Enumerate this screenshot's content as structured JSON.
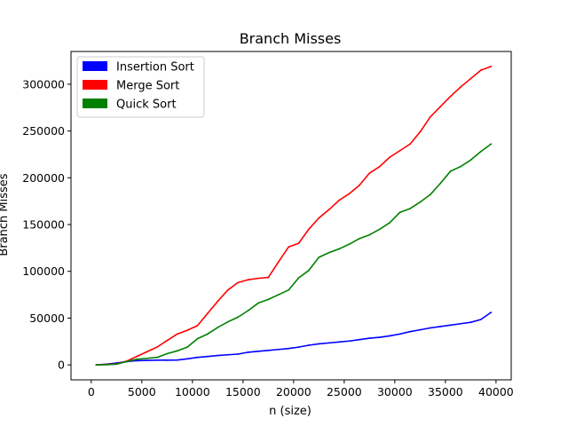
{
  "chart_data": {
    "type": "line",
    "title": "Branch Misses",
    "xlabel": "n (size)",
    "ylabel": "Branch Misses",
    "xlim": [
      -2000,
      41500
    ],
    "ylim": [
      -16000,
      335000
    ],
    "x_ticks": [
      0,
      5000,
      10000,
      15000,
      20000,
      25000,
      30000,
      35000,
      40000
    ],
    "y_ticks": [
      0,
      50000,
      100000,
      150000,
      200000,
      250000,
      300000
    ],
    "grid": false,
    "legend_position": "top-left",
    "x": [
      500,
      1500,
      2500,
      3500,
      4500,
      5500,
      6500,
      7500,
      8500,
      9500,
      10500,
      11500,
      12500,
      13500,
      14500,
      15500,
      16500,
      17500,
      18500,
      19500,
      20500,
      21500,
      22500,
      23500,
      24500,
      25500,
      26500,
      27500,
      28500,
      29500,
      30500,
      31500,
      32500,
      33500,
      34500,
      35500,
      36500,
      37500,
      38500,
      39500
    ],
    "series": [
      {
        "name": "Insertion Sort",
        "color": "#0000ff",
        "values": [
          0,
          800,
          2000,
          3500,
          4500,
          4800,
          5000,
          5000,
          5200,
          6500,
          8000,
          9000,
          10000,
          10800,
          11500,
          13500,
          14500,
          15500,
          16500,
          17500,
          19000,
          21000,
          22500,
          23500,
          24500,
          25500,
          27000,
          28500,
          29500,
          31000,
          33000,
          35500,
          37500,
          39500,
          41000,
          42500,
          44000,
          45500,
          48500,
          56000
        ]
      },
      {
        "name": "Merge Sort",
        "color": "#ff0000",
        "values": [
          0,
          500,
          1000,
          4000,
          9000,
          14000,
          19000,
          26000,
          33000,
          37000,
          42000,
          55000,
          68000,
          80000,
          88000,
          91000,
          92500,
          93500,
          110000,
          126000,
          130000,
          145000,
          157000,
          166000,
          176000,
          183000,
          192000,
          205000,
          212000,
          222000,
          229000,
          236000,
          249000,
          265000,
          276000,
          287000,
          297000,
          306000,
          315000,
          319000
        ]
      },
      {
        "name": "Quick Sort",
        "color": "#008000",
        "values": [
          0,
          200,
          800,
          3500,
          6000,
          7000,
          8000,
          12000,
          15000,
          19000,
          28000,
          33000,
          40000,
          46000,
          51000,
          58000,
          66000,
          70000,
          75000,
          80000,
          93000,
          101000,
          115000,
          120000,
          124000,
          129000,
          135000,
          139000,
          145000,
          152000,
          163000,
          167000,
          174000,
          182000,
          194000,
          207000,
          212000,
          219000,
          228000,
          236000
        ]
      }
    ]
  }
}
